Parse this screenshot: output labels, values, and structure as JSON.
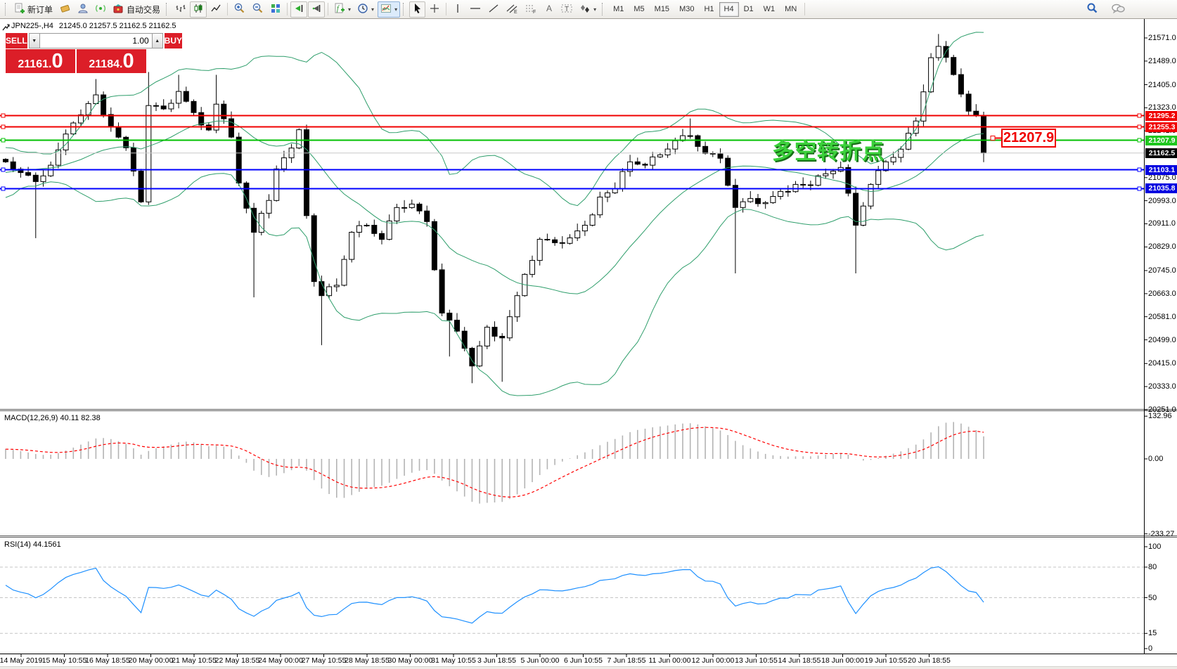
{
  "toolbar": {
    "new_order_label": "新订单",
    "autotrading_label": "自动交易",
    "timeframes": [
      "M1",
      "M5",
      "M15",
      "M30",
      "H1",
      "H4",
      "D1",
      "W1",
      "MN"
    ],
    "selected_timeframe": "H4",
    "icons": [
      "new-order-icon",
      "eraser-icon",
      "profile-icon",
      "signal-icon",
      "autotrading-icon",
      "bar-chart-icon",
      "candlestick-chart-icon",
      "line-chart-icon",
      "zoom-in-icon",
      "zoom-out-icon",
      "tile-windows-icon",
      "auto-scroll-icon",
      "chart-shift-icon",
      "indicators-icon",
      "periods-icon",
      "templates-icon",
      "cursor-icon",
      "crosshair-icon",
      "vertical-line-icon",
      "horizontal-line-icon",
      "trendline-icon",
      "channel-icon",
      "fibonacci-icon",
      "text-icon",
      "text-label-icon",
      "arrows-icon",
      "search-icon",
      "chat-icon"
    ]
  },
  "chart_header": {
    "symbol": "JPN225-,H4",
    "ohlc": "21245.0 21257.5 21162.5 21162.5"
  },
  "trade_panel": {
    "sell_label": "SELL",
    "buy_label": "BUY",
    "volume": "1.00",
    "sell_price": {
      "main": "21161",
      "dot": ".",
      "big": "0"
    },
    "buy_price": {
      "main": "21184",
      "dot": ".",
      "big": "0"
    }
  },
  "annotation": {
    "text": "多空转折点",
    "color": "#3bd13b"
  },
  "callout": {
    "text": "21207.9"
  },
  "price_axis": {
    "ticks": [
      "21571.0",
      "21489.0",
      "21405.0",
      "21323.0",
      "21241.0",
      "21075.0",
      "20993.0",
      "20911.0",
      "20829.0",
      "20745.0",
      "20663.0",
      "20581.0",
      "20499.0",
      "20415.0",
      "20333.0",
      "20251.0"
    ],
    "badges": [
      {
        "text": "21295.2",
        "color": "#f00000"
      },
      {
        "text": "21255.3",
        "color": "#f00000"
      },
      {
        "text": "21207.9",
        "color": "#1fc71f"
      },
      {
        "text": "21162.5",
        "color": "#000000"
      },
      {
        "text": "21103.1",
        "color": "#0000e0"
      },
      {
        "text": "21035.8",
        "color": "#0000e0"
      }
    ]
  },
  "hlines": [
    {
      "price": 21295.2,
      "color": "#f00000",
      "width": 2,
      "markers": true
    },
    {
      "price": 21255.3,
      "color": "#f00000",
      "width": 2,
      "markers": true
    },
    {
      "price": 21207.9,
      "color": "#00c000",
      "width": 2,
      "markers": true
    },
    {
      "price": 21162.5,
      "color": "#c8c8c8",
      "width": 1,
      "markers": false
    },
    {
      "price": 21103.1,
      "color": "#0000ff",
      "width": 2,
      "markers": true
    },
    {
      "price": 21035.8,
      "color": "#0000ff",
      "width": 2,
      "markers": true
    }
  ],
  "macd_panel": {
    "name": "MACD(12,26,9)",
    "value_main": "40.11",
    "value_signal": "82.38",
    "axis": [
      "132.96",
      "0.00",
      "-233.27"
    ]
  },
  "rsi_panel": {
    "name": "RSI(14)",
    "value": "44.1561",
    "axis": [
      "100",
      "80",
      "50",
      "15",
      "0"
    ],
    "levels": [
      80,
      50,
      15
    ]
  },
  "time_axis": {
    "labels": [
      "14 May 2019",
      "15 May 10:55",
      "16 May 18:55",
      "20 May 00:00",
      "21 May 10:55",
      "22 May 18:55",
      "24 May 00:00",
      "27 May 10:55",
      "28 May 18:55",
      "30 May 00:00",
      "31 May 10:55",
      "3 Jun 18:55",
      "5 Jun 00:00",
      "6 Jun 10:55",
      "7 Jun 18:55",
      "11 Jun 00:00",
      "12 Jun 00:00",
      "13 Jun 10:55",
      "14 Jun 18:55",
      "18 Jun 00:00",
      "19 Jun 10:55",
      "20 Jun 18:55"
    ]
  },
  "chart_data": {
    "type": "candlestick",
    "symbol": "JPN225",
    "period": "H4",
    "visible_price_top": 21638,
    "visible_price_bottom": 20251,
    "last_close": 21162.5,
    "bar_count": 131,
    "close_anchors": [
      [
        0,
        21131
      ],
      [
        2,
        21093
      ],
      [
        4,
        21061
      ],
      [
        6,
        21119
      ],
      [
        9,
        21269
      ],
      [
        12,
        21369
      ],
      [
        14,
        21256
      ],
      [
        16,
        21181
      ],
      [
        18,
        20989
      ],
      [
        19,
        21331
      ],
      [
        21,
        21319
      ],
      [
        23,
        21381
      ],
      [
        25,
        21306
      ],
      [
        27,
        21244
      ],
      [
        28,
        21336
      ],
      [
        30,
        21219
      ],
      [
        31,
        21056
      ],
      [
        33,
        20881
      ],
      [
        35,
        20994
      ],
      [
        36,
        21106
      ],
      [
        38,
        21180
      ],
      [
        39,
        21245
      ],
      [
        40,
        20940
      ],
      [
        41,
        20706
      ],
      [
        42,
        20656
      ],
      [
        44,
        20693
      ],
      [
        46,
        20881
      ],
      [
        48,
        20906
      ],
      [
        50,
        20856
      ],
      [
        52,
        20969
      ],
      [
        54,
        20981
      ],
      [
        56,
        20919
      ],
      [
        58,
        20594
      ],
      [
        59,
        20569
      ],
      [
        61,
        20469
      ],
      [
        62,
        20406
      ],
      [
        64,
        20544
      ],
      [
        66,
        20506
      ],
      [
        68,
        20656
      ],
      [
        70,
        20781
      ],
      [
        71,
        20856
      ],
      [
        73,
        20844
      ],
      [
        75,
        20861
      ],
      [
        77,
        20906
      ],
      [
        79,
        21006
      ],
      [
        81,
        21036
      ],
      [
        83,
        21131
      ],
      [
        85,
        21119
      ],
      [
        87,
        21156
      ],
      [
        89,
        21206
      ],
      [
        91,
        21224
      ],
      [
        93,
        21161
      ],
      [
        95,
        21144
      ],
      [
        97,
        20969
      ],
      [
        99,
        21001
      ],
      [
        101,
        20986
      ],
      [
        103,
        21026
      ],
      [
        105,
        21051
      ],
      [
        107,
        21048
      ],
      [
        109,
        21089
      ],
      [
        111,
        21111
      ],
      [
        113,
        20906
      ],
      [
        115,
        21051
      ],
      [
        117,
        21131
      ],
      [
        119,
        21176
      ],
      [
        121,
        21276
      ],
      [
        123,
        21501
      ],
      [
        124,
        21541
      ],
      [
        126,
        21441
      ],
      [
        128,
        21311
      ],
      [
        129,
        21294
      ],
      [
        130,
        21162.5
      ]
    ],
    "wick_overrides": {
      "4": {
        "low": 20860
      },
      "12": {
        "high": 21425
      },
      "19": {
        "high": 21450
      },
      "23": {
        "high": 21440
      },
      "28": {
        "high": 21440
      },
      "33": {
        "low": 20650
      },
      "42": {
        "low": 20480
      },
      "59": {
        "low": 20440
      },
      "62": {
        "low": 20345
      },
      "66": {
        "low": 20350
      },
      "91": {
        "high": 21285
      },
      "97": {
        "low": 20735
      },
      "113": {
        "low": 20735
      },
      "124": {
        "high": 21585
      },
      "130": {
        "low": 21130
      }
    },
    "prehistory": [
      21000,
      21020,
      20990,
      21040,
      21060,
      21035,
      21070,
      21090,
      21065,
      21100,
      21120,
      21095,
      21130,
      21110,
      21140,
      21125,
      21150,
      21135,
      21115,
      21140
    ],
    "indicators": {
      "bollinger": {
        "period": 20,
        "deviation": 2,
        "color": "#2e9e6b"
      },
      "macd": {
        "fast": 12,
        "slow": 26,
        "signal": 9,
        "hist_color": "#b4b4b4",
        "signal_color": "#ff0000"
      },
      "rsi": {
        "period": 14,
        "color": "#1e90ff"
      }
    }
  }
}
